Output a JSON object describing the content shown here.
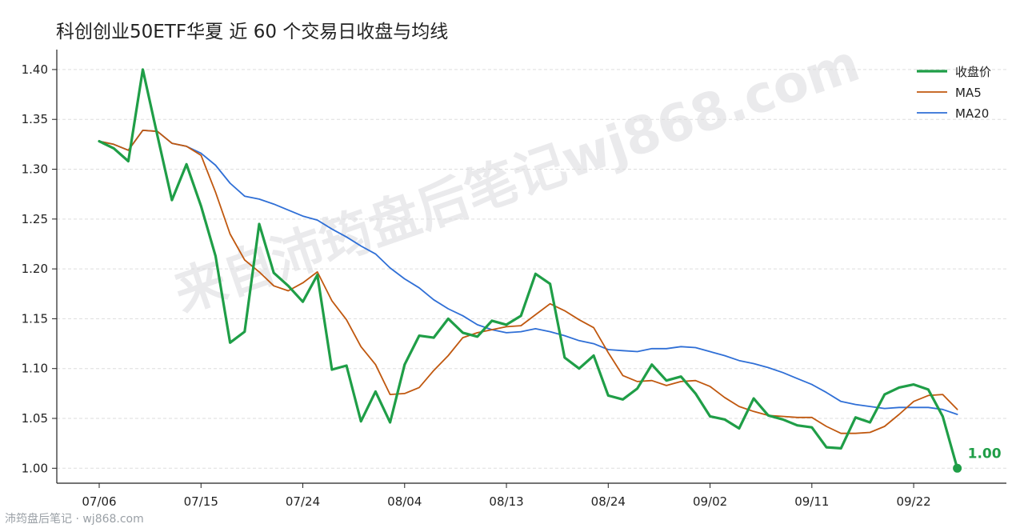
{
  "title": "科创创业50ETF华夏 近 60 个交易日收盘与均线",
  "watermark": "来自沛筠盘后笔记wj868.com",
  "footer": "沛筠盘后笔记 · wj868.com",
  "colors": {
    "close": "#1f9e47",
    "ma5": "#c0580f",
    "ma20": "#2f6fd6",
    "grid": "#dddddd",
    "axis": "#222222"
  },
  "chart_data": {
    "type": "line",
    "x": [
      "07/06",
      "07/07",
      "07/08",
      "07/09",
      "07/10",
      "07/13",
      "07/14",
      "07/15",
      "07/16",
      "07/17",
      "07/20",
      "07/21",
      "07/22",
      "07/23",
      "07/24",
      "07/27",
      "07/28",
      "07/29",
      "07/30",
      "07/31",
      "08/03",
      "08/04",
      "08/05",
      "08/06",
      "08/07",
      "08/10",
      "08/11",
      "08/12",
      "08/13",
      "08/14",
      "08/17",
      "08/18",
      "08/19",
      "08/20",
      "08/21",
      "08/24",
      "08/25",
      "08/26",
      "08/27",
      "08/28",
      "08/31",
      "09/01",
      "09/02",
      "09/03",
      "09/04",
      "09/07",
      "09/08",
      "09/09",
      "09/10",
      "09/11",
      "09/14",
      "09/15",
      "09/16",
      "09/17",
      "09/18",
      "09/21",
      "09/22",
      "09/23",
      "09/24",
      "09/25"
    ],
    "xticks": [
      "07/06",
      "07/15",
      "07/24",
      "08/04",
      "08/13",
      "08/24",
      "09/02",
      "09/11",
      "09/22"
    ],
    "ylim": [
      0.985,
      1.42
    ],
    "yticks": [
      "1.00",
      "1.05",
      "1.10",
      "1.15",
      "1.20",
      "1.25",
      "1.30",
      "1.35",
      "1.40"
    ],
    "grid": "horizontal dashed",
    "legend_position": "top-right",
    "series": [
      {
        "name": "收盘价",
        "values": [
          1.328,
          1.321,
          1.308,
          1.4,
          1.334,
          1.269,
          1.305,
          1.263,
          1.213,
          1.126,
          1.137,
          1.245,
          1.196,
          1.183,
          1.167,
          1.194,
          1.099,
          1.103,
          1.047,
          1.077,
          1.046,
          1.104,
          1.133,
          1.131,
          1.15,
          1.136,
          1.132,
          1.148,
          1.144,
          1.153,
          1.195,
          1.185,
          1.111,
          1.1,
          1.113,
          1.073,
          1.069,
          1.08,
          1.104,
          1.088,
          1.092,
          1.075,
          1.052,
          1.049,
          1.04,
          1.07,
          1.053,
          1.049,
          1.043,
          1.041,
          1.021,
          1.02,
          1.051,
          1.046,
          1.074,
          1.081,
          1.084,
          1.079,
          1.052,
          1.0
        ]
      },
      {
        "name": "MA5",
        "values": [
          1.328,
          1.325,
          1.319,
          1.339,
          1.338,
          1.326,
          1.323,
          1.314,
          1.277,
          1.235,
          1.209,
          1.197,
          1.183,
          1.178,
          1.186,
          1.197,
          1.168,
          1.149,
          1.122,
          1.104,
          1.074,
          1.075,
          1.081,
          1.098,
          1.113,
          1.131,
          1.136,
          1.139,
          1.142,
          1.143,
          1.154,
          1.165,
          1.158,
          1.149,
          1.141,
          1.116,
          1.093,
          1.087,
          1.088,
          1.083,
          1.087,
          1.088,
          1.082,
          1.071,
          1.062,
          1.057,
          1.053,
          1.052,
          1.051,
          1.051,
          1.042,
          1.035,
          1.035,
          1.036,
          1.042,
          1.054,
          1.067,
          1.073,
          1.074,
          1.059
        ]
      },
      {
        "name": "MA20",
        "values": [
          1.328,
          1.325,
          1.319,
          1.339,
          1.338,
          1.326,
          1.323,
          1.316,
          1.304,
          1.286,
          1.273,
          1.27,
          1.265,
          1.259,
          1.253,
          1.249,
          1.24,
          1.232,
          1.223,
          1.215,
          1.201,
          1.19,
          1.181,
          1.169,
          1.16,
          1.153,
          1.144,
          1.139,
          1.136,
          1.137,
          1.14,
          1.137,
          1.133,
          1.128,
          1.125,
          1.119,
          1.118,
          1.117,
          1.12,
          1.12,
          1.122,
          1.121,
          1.117,
          1.113,
          1.108,
          1.105,
          1.101,
          1.096,
          1.09,
          1.084,
          1.076,
          1.067,
          1.064,
          1.062,
          1.06,
          1.061,
          1.061,
          1.061,
          1.059,
          1.054
        ]
      }
    ],
    "last_value_label": "1.00"
  }
}
